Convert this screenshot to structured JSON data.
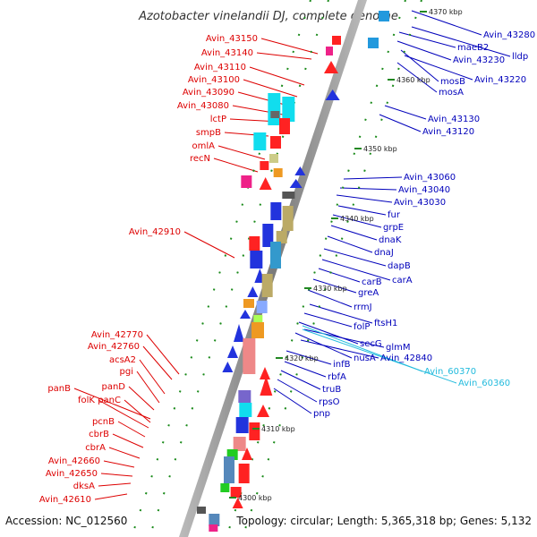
{
  "title": "Azotobacter vinelandii DJ, complete genome",
  "footer": {
    "accession": "Accession: NC_012560",
    "summary": "Topology: circular; Length: 5,365,318 bp; Genes: 5,132"
  },
  "colors": {
    "left_label": "#dd0000",
    "right_label": "#0000bb",
    "cyan_label": "#22bbdd",
    "backbone": "#888888",
    "tick": "#228822"
  },
  "scale_ticks": [
    {
      "label": "4370 kbp"
    },
    {
      "label": "4360 kbp"
    },
    {
      "label": "4350 kbp"
    },
    {
      "label": "4340 kbp"
    },
    {
      "label": "4330 kbp"
    },
    {
      "label": "4320 kbp"
    },
    {
      "label": "4310 kbp"
    },
    {
      "label": "4300 kbp"
    }
  ],
  "left_labels": [
    "Avin_43150",
    "Avin_43140",
    "Avin_43110",
    "Avin_43100",
    "Avin_43090",
    "Avin_43080",
    "lctP",
    "smpB",
    "omlA",
    "recN",
    "Avin_42910",
    "Avin_42770",
    "Avin_42760",
    "acsA2",
    "pgi",
    "panD",
    "panB",
    "panC",
    "folK",
    "pcnB",
    "cbrB",
    "cbrA",
    "Avin_42660",
    "Avin_42650",
    "dksA",
    "Avin_42610"
  ],
  "right_labels": [
    "Avin_43280",
    "maeB2",
    "lldp",
    "Avin_43230",
    "mosB",
    "Avin_43220",
    "mosA",
    "Avin_43130",
    "Avin_43120",
    "Avin_43060",
    "Avin_43040",
    "Avin_43030",
    "fur",
    "grpE",
    "dnaK",
    "dnaJ",
    "dapB",
    "carA",
    "carB",
    "greA",
    "rrmJ",
    "ftsH1",
    "folP",
    "secG",
    "glmM",
    "nusA",
    "Avin_42840",
    "infB",
    "rbfA",
    "truB",
    "rpsO",
    "pnp"
  ],
  "cyan_labels": [
    "Avin_60370",
    "Avin_60360"
  ]
}
